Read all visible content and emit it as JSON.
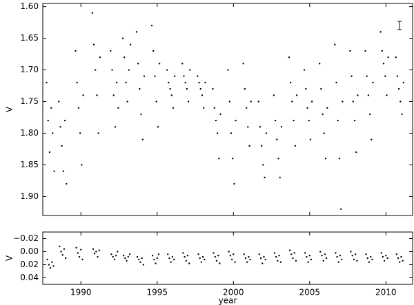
{
  "chart_data": [
    {
      "type": "scatter",
      "ylabel": "V",
      "color": "#000000",
      "xlim": [
        1987.5,
        2011.75
      ],
      "ylim": [
        1.93,
        1.595
      ],
      "yticks": [
        {
          "value": 1.6,
          "label": "1.60"
        },
        1.65,
        {
          "value": 1.7,
          "label": "1.70"
        },
        1.75,
        {
          "value": 1.8,
          "label": "1.80"
        },
        1.85,
        {
          "value": 1.9,
          "label": "1.90"
        }
      ],
      "x": [
        1987.75,
        1987.85,
        1987.95,
        1988.05,
        1988.15,
        1988.25,
        1988.55,
        1988.65,
        1988.75,
        1988.85,
        1988.95,
        1989.05,
        1989.65,
        1989.75,
        1989.85,
        1989.95,
        1990.05,
        1990.15,
        1990.75,
        1990.85,
        1990.95,
        1991.05,
        1991.15,
        1991.25,
        1991.95,
        1992.05,
        1992.15,
        1992.25,
        1992.35,
        1992.45,
        1992.75,
        1992.85,
        1992.95,
        1993.05,
        1993.15,
        1993.25,
        1993.65,
        1993.75,
        1993.85,
        1993.95,
        1994.05,
        1994.15,
        1994.65,
        1994.75,
        1994.85,
        1994.95,
        1995.05,
        1995.15,
        1995.65,
        1995.75,
        1995.85,
        1995.95,
        1996.05,
        1996.15,
        1996.65,
        1996.75,
        1996.85,
        1996.95,
        1997.05,
        1997.15,
        1997.65,
        1997.75,
        1997.85,
        1997.95,
        1998.05,
        1998.15,
        1998.65,
        1998.75,
        1998.85,
        1998.95,
        1999.05,
        1999.15,
        1999.65,
        1999.75,
        1999.85,
        1999.95,
        2000.05,
        2000.15,
        2000.65,
        2000.75,
        2000.85,
        2000.95,
        2001.05,
        2001.15,
        2001.65,
        2001.75,
        2001.85,
        2001.95,
        2002.05,
        2002.15,
        2002.65,
        2002.75,
        2002.85,
        2002.95,
        2003.05,
        2003.15,
        2003.65,
        2003.75,
        2003.85,
        2003.95,
        2004.05,
        2004.15,
        2004.65,
        2004.75,
        2004.85,
        2004.95,
        2005.05,
        2005.15,
        2005.65,
        2005.75,
        2005.85,
        2005.95,
        2006.05,
        2006.15,
        2006.65,
        2006.75,
        2006.85,
        2006.95,
        2007.05,
        2007.15,
        2007.65,
        2007.75,
        2007.85,
        2007.95,
        2008.05,
        2008.15,
        2008.65,
        2008.75,
        2008.85,
        2008.95,
        2009.05,
        2009.15,
        2009.65,
        2009.75,
        2009.85,
        2009.95,
        2010.05,
        2010.15,
        2010.65,
        2010.75,
        2010.85,
        2010.95,
        2011.05,
        2011.15
      ],
      "values": [
        1.72,
        1.78,
        1.83,
        1.76,
        1.8,
        1.86,
        1.75,
        1.79,
        1.82,
        1.86,
        1.78,
        1.88,
        1.67,
        1.72,
        1.76,
        1.8,
        1.85,
        1.74,
        1.61,
        1.66,
        1.7,
        1.74,
        1.8,
        1.68,
        1.67,
        1.7,
        1.74,
        1.79,
        1.72,
        1.76,
        1.65,
        1.68,
        1.72,
        1.75,
        1.7,
        1.66,
        1.64,
        1.69,
        1.73,
        1.77,
        1.81,
        1.71,
        1.63,
        1.67,
        1.71,
        1.75,
        1.79,
        1.69,
        1.7,
        1.72,
        1.73,
        1.74,
        1.76,
        1.71,
        1.69,
        1.71,
        1.72,
        1.73,
        1.75,
        1.7,
        1.71,
        1.72,
        1.73,
        1.74,
        1.76,
        1.72,
        1.73,
        1.76,
        1.78,
        1.8,
        1.84,
        1.77,
        1.7,
        1.75,
        1.8,
        1.84,
        1.88,
        1.78,
        1.69,
        1.73,
        1.76,
        1.79,
        1.82,
        1.75,
        1.75,
        1.79,
        1.82,
        1.85,
        1.87,
        1.8,
        1.74,
        1.78,
        1.81,
        1.84,
        1.87,
        1.79,
        1.68,
        1.72,
        1.75,
        1.78,
        1.82,
        1.74,
        1.7,
        1.73,
        1.76,
        1.78,
        1.81,
        1.75,
        1.69,
        1.73,
        1.77,
        1.8,
        1.84,
        1.76,
        1.66,
        1.72,
        1.78,
        1.84,
        1.92,
        1.75,
        1.67,
        1.71,
        1.75,
        1.78,
        1.83,
        1.74,
        1.67,
        1.71,
        1.74,
        1.77,
        1.81,
        1.72,
        1.64,
        1.67,
        1.69,
        1.71,
        1.74,
        1.68,
        1.68,
        1.71,
        1.73,
        1.75,
        1.77,
        1.72
      ]
    },
    {
      "type": "scatter",
      "ylabel": "V",
      "xlabel": "year",
      "color": "#000000",
      "xlim": [
        1987.5,
        2011.75
      ],
      "ylim": [
        0.05,
        -0.03
      ],
      "xticks": [
        1990,
        1995,
        2000,
        2005,
        2010
      ],
      "yticks": [
        {
          "value": -0.02,
          "label": "−0.02"
        },
        {
          "value": 0,
          "label": "0.00"
        },
        0.02,
        0.04
      ],
      "x": [
        1987.8,
        1987.9,
        1988.0,
        1988.1,
        1988.2,
        1988.6,
        1988.7,
        1988.8,
        1988.9,
        1989.0,
        1989.7,
        1989.8,
        1989.9,
        1990.0,
        1990.1,
        1990.8,
        1990.9,
        1991.0,
        1991.1,
        1991.2,
        1992.0,
        1992.1,
        1992.2,
        1992.3,
        1992.4,
        1992.8,
        1992.9,
        1993.0,
        1993.1,
        1993.2,
        1993.7,
        1993.8,
        1993.9,
        1994.0,
        1994.1,
        1994.7,
        1994.8,
        1994.9,
        1995.0,
        1995.1,
        1995.7,
        1995.8,
        1995.9,
        1996.0,
        1996.1,
        1996.7,
        1996.8,
        1996.9,
        1997.0,
        1997.1,
        1997.7,
        1997.8,
        1997.9,
        1998.0,
        1998.1,
        1998.7,
        1998.8,
        1998.9,
        1999.0,
        1999.1,
        1999.7,
        1999.8,
        1999.9,
        2000.0,
        2000.1,
        2000.7,
        2000.8,
        2000.9,
        2001.0,
        2001.1,
        2001.7,
        2001.8,
        2001.9,
        2002.0,
        2002.1,
        2002.7,
        2002.8,
        2002.9,
        2003.0,
        2003.1,
        2003.7,
        2003.8,
        2003.9,
        2004.0,
        2004.1,
        2004.7,
        2004.8,
        2004.9,
        2005.0,
        2005.1,
        2005.7,
        2005.8,
        2005.9,
        2006.0,
        2006.1,
        2006.7,
        2006.8,
        2006.9,
        2007.0,
        2007.1,
        2007.7,
        2007.8,
        2007.9,
        2008.0,
        2008.1,
        2008.7,
        2008.8,
        2008.9,
        2009.0,
        2009.1,
        2009.7,
        2009.8,
        2009.9,
        2010.0,
        2010.1,
        2010.7,
        2010.8,
        2010.9,
        2011.0,
        2011.1
      ],
      "values": [
        0.012,
        0.02,
        0.025,
        0.016,
        0.022,
        -0.008,
        0.0,
        0.005,
        -0.004,
        0.01,
        -0.006,
        0.002,
        0.008,
        -0.003,
        0.012,
        -0.004,
        0.003,
        0.0,
        0.008,
        -0.002,
        0.004,
        0.008,
        0.012,
        0.006,
        0.0,
        0.006,
        0.01,
        0.014,
        0.008,
        0.004,
        0.008,
        0.012,
        0.016,
        0.01,
        0.02,
        0.006,
        0.012,
        0.018,
        0.01,
        0.004,
        0.004,
        0.01,
        0.016,
        0.008,
        0.012,
        0.002,
        0.008,
        0.014,
        0.006,
        0.018,
        0.004,
        0.01,
        0.016,
        0.008,
        0.012,
        0.002,
        0.008,
        0.014,
        0.006,
        0.018,
        0.0,
        0.006,
        0.012,
        0.004,
        0.016,
        0.004,
        0.01,
        0.016,
        0.008,
        0.012,
        0.004,
        0.01,
        0.018,
        0.008,
        0.012,
        0.002,
        0.008,
        0.014,
        0.006,
        0.016,
        -0.002,
        0.004,
        0.01,
        0.002,
        0.014,
        0.002,
        0.008,
        0.016,
        0.006,
        0.012,
        0.0,
        0.006,
        0.014,
        0.004,
        0.01,
        0.002,
        0.008,
        0.016,
        0.006,
        0.012,
        0.0,
        0.006,
        0.012,
        0.004,
        0.014,
        0.004,
        0.01,
        0.016,
        0.008,
        0.012,
        0.002,
        0.008,
        0.014,
        0.006,
        0.01,
        0.004,
        0.01,
        0.016,
        0.008,
        0.014
      ]
    }
  ]
}
